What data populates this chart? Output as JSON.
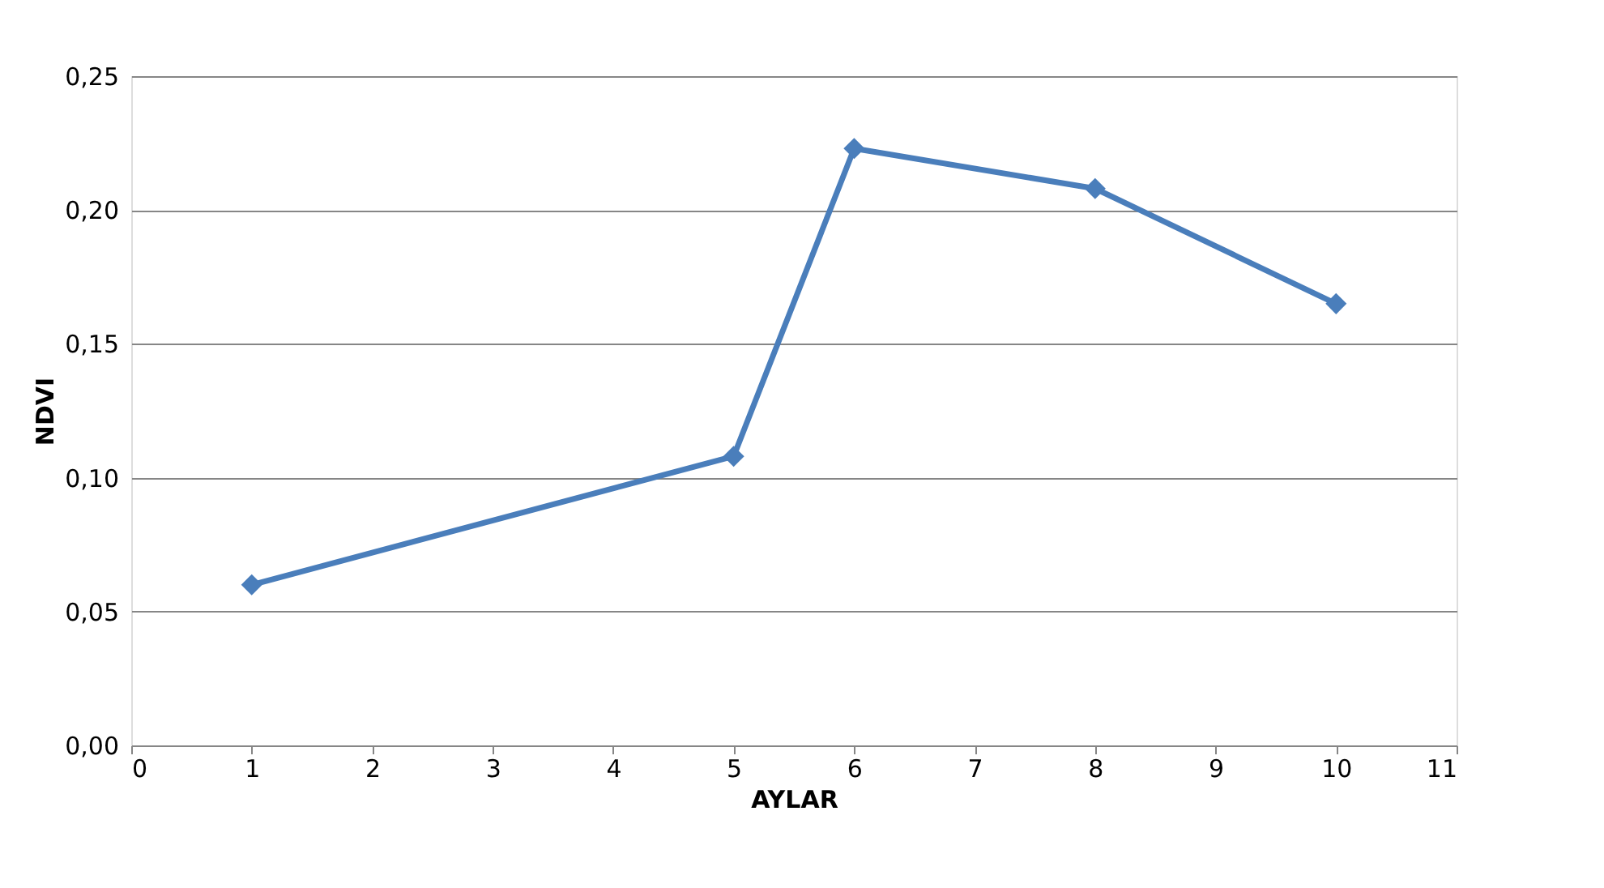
{
  "chart_data": {
    "type": "line",
    "xlabel": "AYLAR",
    "ylabel": "NDVI",
    "x": [
      1,
      5,
      6,
      8,
      10
    ],
    "series": [
      {
        "color": "#4a7ebb",
        "values": [
          0.06,
          0.108,
          0.223,
          0.208,
          0.165
        ]
      }
    ],
    "xlim": [
      0,
      11
    ],
    "xticks": [
      0,
      1,
      2,
      3,
      4,
      5,
      6,
      7,
      8,
      9,
      10,
      11
    ],
    "ylim": [
      0,
      0.25
    ],
    "yticks": [
      {
        "value": 0,
        "label": "0,00"
      },
      {
        "value": 0.05,
        "label": "0,05"
      },
      {
        "value": 0.1,
        "label": "0,10"
      },
      {
        "value": 0.15,
        "label": "0,15"
      },
      {
        "value": 0.2,
        "label": "0,20"
      },
      {
        "value": 0.25,
        "label": "0,25"
      }
    ],
    "grid": "y",
    "marker": "diamond",
    "line_style": "solid"
  }
}
